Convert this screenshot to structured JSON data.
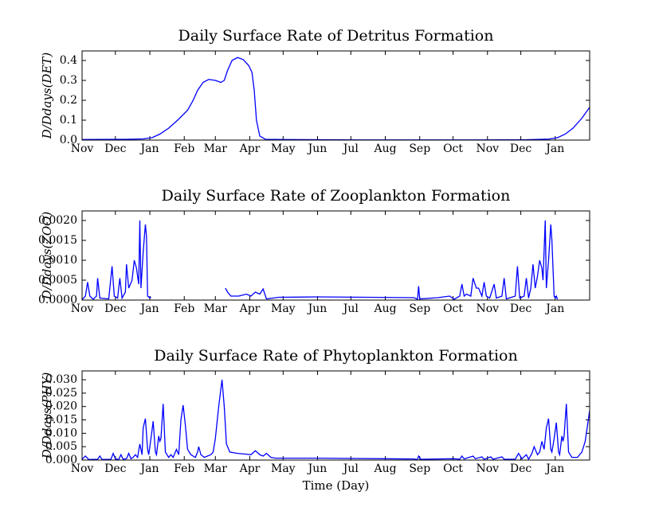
{
  "chart_data": [
    {
      "type": "line",
      "title": "Daily Surface Rate of Detritus Formation",
      "ylabel": "D/Ddays(DET)",
      "color": "#0000ff",
      "x": [
        0,
        40,
        55,
        63,
        70,
        78,
        86,
        95,
        100,
        104,
        109,
        114,
        120,
        125,
        128,
        131,
        135,
        140,
        145,
        150,
        153,
        155,
        157,
        160,
        165,
        180,
        250,
        350,
        400,
        420,
        428,
        435,
        442,
        450,
        457
      ],
      "values": [
        0.003,
        0.004,
        0.006,
        0.012,
        0.03,
        0.06,
        0.1,
        0.15,
        0.2,
        0.25,
        0.29,
        0.305,
        0.3,
        0.29,
        0.3,
        0.35,
        0.4,
        0.415,
        0.405,
        0.375,
        0.34,
        0.25,
        0.1,
        0.02,
        0.004,
        0.003,
        0.001,
        0.001,
        0.002,
        0.005,
        0.012,
        0.03,
        0.06,
        0.11,
        0.165
      ],
      "xlim": [
        0,
        457
      ],
      "xticks": [
        {
          "value": 0,
          "label": "Nov"
        },
        {
          "value": 30,
          "label": "Dec"
        },
        {
          "value": 61,
          "label": "Jan"
        },
        {
          "value": 92,
          "label": "Feb"
        },
        {
          "value": 120,
          "label": "Mar"
        },
        {
          "value": 151,
          "label": "Apr"
        },
        {
          "value": 181,
          "label": "May"
        },
        {
          "value": 212,
          "label": "Jun"
        },
        {
          "value": 242,
          "label": "Jul"
        },
        {
          "value": 273,
          "label": "Aug"
        },
        {
          "value": 304,
          "label": "Sep"
        },
        {
          "value": 334,
          "label": "Oct"
        },
        {
          "value": 365,
          "label": "Nov"
        },
        {
          "value": 395,
          "label": "Dec"
        },
        {
          "value": 426,
          "label": "Jan"
        }
      ],
      "ylim": [
        0,
        0.448
      ],
      "yticks": [
        {
          "value": 0,
          "label": "0.0"
        },
        0.1,
        0.2,
        0.3,
        0.4
      ]
    },
    {
      "type": "line",
      "title": "Daily Surface Rate of Zooplankton Formation",
      "ylabel": "D/Ddays(ZOO)",
      "color": "#0000ff",
      "x": [
        0,
        3,
        5,
        7,
        10,
        13,
        14,
        16,
        24,
        27,
        29,
        32,
        34,
        36,
        39,
        40,
        42,
        45,
        47,
        49,
        51,
        52,
        53,
        55,
        57,
        58,
        59,
        60,
        61,
        62,
        63,
        128,
        129,
        131,
        134,
        141,
        148,
        152,
        156,
        160,
        163,
        166,
        172,
        177,
        213,
        299,
        302,
        303,
        304,
        320,
        331,
        335,
        340,
        342,
        344,
        346,
        350,
        352,
        355,
        357,
        360,
        362,
        364,
        367,
        371,
        373,
        378,
        380,
        382,
        390,
        392,
        394,
        398,
        400,
        402,
        404,
        406,
        408,
        410,
        412,
        414,
        415,
        417,
        418,
        420,
        422,
        423,
        425,
        426,
        427,
        428
      ],
      "values": [
        1e-05,
        0.0001,
        0.00045,
        0.0001,
        2e-05,
        0.0001,
        0.00055,
        5e-05,
        3e-05,
        0.00085,
        0.0001,
        5e-05,
        0.00055,
        5e-05,
        0.0002,
        0.0009,
        0.0003,
        0.0005,
        0.001,
        0.0008,
        0.0004,
        0.002,
        0.0003,
        0.0012,
        0.0019,
        0.0016,
        0.0001,
        8e-05,
        5e-05,
        8e-05,
        null,
        null,
        0.0003,
        0.0002,
        0.0001,
        0.0001,
        0.00015,
        0.0001,
        0.0002,
        0.00015,
        0.00028,
        3e-05,
        5e-05,
        7e-05,
        8e-05,
        6e-05,
        2e-05,
        0.00035,
        3e-05,
        6e-05,
        0.0001,
        2e-05,
        0.0001,
        0.0004,
        0.0001,
        0.00015,
        0.0001,
        0.00055,
        0.0003,
        0.0003,
        0.0001,
        0.00045,
        0.0001,
        5e-05,
        0.0004,
        5e-05,
        0.0001,
        0.00055,
        3e-05,
        0.0001,
        0.00085,
        5e-05,
        0.0001,
        0.00055,
        5e-05,
        0.0003,
        0.0009,
        0.0003,
        0.0006,
        0.001,
        0.0008,
        0.0005,
        0.002,
        0.0003,
        0.001,
        0.0019,
        0.0015,
        0.0001,
        5e-05,
        0.0001,
        2e-05
      ],
      "xlim": [
        0,
        457
      ],
      "xticks": [
        {
          "value": 0,
          "label": "Nov"
        },
        {
          "value": 30,
          "label": "Dec"
        },
        {
          "value": 61,
          "label": "Jan"
        },
        {
          "value": 92,
          "label": "Feb"
        },
        {
          "value": 120,
          "label": "Mar"
        },
        {
          "value": 151,
          "label": "Apr"
        },
        {
          "value": 181,
          "label": "May"
        },
        {
          "value": 212,
          "label": "Jun"
        },
        {
          "value": 242,
          "label": "Jul"
        },
        {
          "value": 273,
          "label": "Aug"
        },
        {
          "value": 304,
          "label": "Sep"
        },
        {
          "value": 334,
          "label": "Oct"
        },
        {
          "value": 365,
          "label": "Nov"
        },
        {
          "value": 395,
          "label": "Dec"
        },
        {
          "value": 426,
          "label": "Jan"
        }
      ],
      "ylim": [
        0,
        0.00224
      ],
      "yticks": [
        {
          "value": 0,
          "label": "0.0000"
        },
        0.0005,
        {
          "value": 0.001,
          "label": "0.0010"
        },
        0.0015,
        {
          "value": 0.002,
          "label": "0.0020"
        }
      ]
    },
    {
      "type": "line",
      "title": "Daily Surface Rate of Phytoplankton Formation",
      "ylabel": "D/Ddays(PHY)",
      "xlabel": "Time (Day)",
      "color": "#0000ff",
      "x": [
        0,
        3,
        6,
        14,
        16,
        18,
        26,
        28,
        30,
        33,
        35,
        37,
        40,
        42,
        44,
        46,
        48,
        50,
        52,
        54,
        55,
        57,
        59,
        60,
        62,
        64,
        66,
        67,
        69,
        70,
        71,
        73,
        75,
        78,
        80,
        82,
        85,
        87,
        89,
        91,
        93,
        95,
        98,
        102,
        104,
        105,
        107,
        110,
        116,
        118,
        120,
        123,
        126,
        128,
        130,
        133,
        140,
        148,
        152,
        156,
        160,
        163,
        166,
        170,
        174,
        213,
        299,
        302,
        303,
        305,
        335,
        340,
        342,
        344,
        352,
        354,
        360,
        362,
        368,
        370,
        378,
        380,
        390,
        393,
        396,
        400,
        402,
        405,
        407,
        410,
        412,
        414,
        416,
        418,
        420,
        422,
        423,
        425,
        427,
        429,
        430,
        432,
        433,
        434,
        436,
        438,
        441,
        446,
        450,
        453,
        457
      ],
      "values": [
        0.0003,
        0.0015,
        0.0002,
        0.0003,
        0.0015,
        0.0002,
        0.0003,
        0.0025,
        0.0005,
        0.0002,
        0.002,
        0.0003,
        0.0005,
        0.0025,
        0.0005,
        0.001,
        0.002,
        0.001,
        0.006,
        0.002,
        0.012,
        0.0155,
        0.004,
        0.002,
        0.008,
        0.0145,
        0.003,
        0.002,
        0.009,
        0.007,
        0.008,
        0.021,
        0.003,
        0.001,
        0.002,
        0.001,
        0.004,
        0.002,
        0.015,
        0.0205,
        0.013,
        0.004,
        0.002,
        0.001,
        0.003,
        0.005,
        0.002,
        0.001,
        0.002,
        0.003,
        0.008,
        0.02,
        0.03,
        0.02,
        0.006,
        0.003,
        0.0025,
        0.0022,
        0.002,
        0.0035,
        0.002,
        0.0015,
        0.0025,
        0.001,
        0.0007,
        0.0007,
        0.0004,
        0.0002,
        0.0015,
        0.0003,
        0.0005,
        0.0003,
        0.0015,
        0.0004,
        0.0015,
        0.0005,
        0.0012,
        0.0003,
        0.0012,
        0.0003,
        0.0012,
        0.0003,
        0.0003,
        0.0025,
        0.0005,
        0.002,
        0.0003,
        0.0025,
        0.005,
        0.002,
        0.003,
        0.007,
        0.004,
        0.012,
        0.0155,
        0.004,
        0.003,
        0.008,
        0.014,
        0.003,
        0.002,
        0.009,
        0.007,
        0.009,
        0.021,
        0.003,
        0.001,
        0.001,
        0.003,
        0.007,
        0.0185
      ],
      "xlim": [
        0,
        457
      ],
      "xticks": [
        {
          "value": 0,
          "label": "Nov"
        },
        {
          "value": 30,
          "label": "Dec"
        },
        {
          "value": 61,
          "label": "Jan"
        },
        {
          "value": 92,
          "label": "Feb"
        },
        {
          "value": 120,
          "label": "Mar"
        },
        {
          "value": 151,
          "label": "Apr"
        },
        {
          "value": 181,
          "label": "May"
        },
        {
          "value": 212,
          "label": "Jun"
        },
        {
          "value": 242,
          "label": "Jul"
        },
        {
          "value": 273,
          "label": "Aug"
        },
        {
          "value": 304,
          "label": "Sep"
        },
        {
          "value": 334,
          "label": "Oct"
        },
        {
          "value": 365,
          "label": "Nov"
        },
        {
          "value": 395,
          "label": "Dec"
        },
        {
          "value": 426,
          "label": "Jan"
        }
      ],
      "ylim": [
        0,
        0.0333
      ],
      "yticks": [
        {
          "value": 0,
          "label": "0.000"
        },
        0.005,
        {
          "value": 0.01,
          "label": "0.010"
        },
        0.015,
        {
          "value": 0.02,
          "label": "0.020"
        },
        0.025,
        {
          "value": 0.03,
          "label": "0.030"
        }
      ]
    }
  ]
}
